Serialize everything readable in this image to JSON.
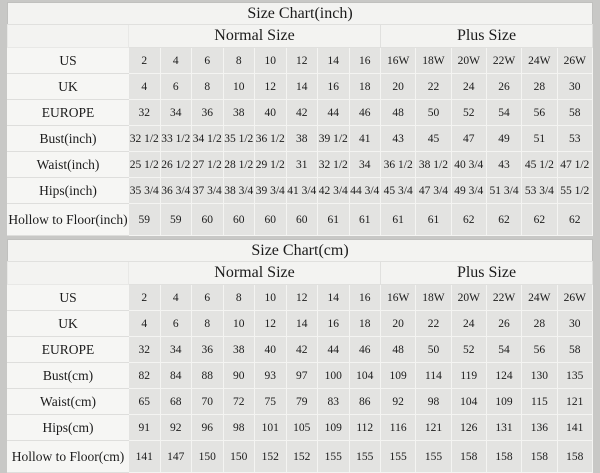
{
  "colors": {
    "page_bg": "#c8c8c6",
    "table_bg": "#f3f3f1",
    "data_cell_bg": "#e3e3e1",
    "label_cell_bg": "#f6f6f4",
    "grid_line": "#f4f4f2",
    "text": "#1b1b1b"
  },
  "chart_data": [
    {
      "type": "table",
      "title": "Size Chart(inch)",
      "column_groups": [
        "Normal Size",
        "Plus Size"
      ],
      "normal_columns": 8,
      "plus_columns": 6,
      "rows": [
        {
          "label": "US",
          "normal": [
            "2",
            "4",
            "6",
            "8",
            "10",
            "12",
            "14",
            "16"
          ],
          "plus": [
            "16W",
            "18W",
            "20W",
            "22W",
            "24W",
            "26W"
          ]
        },
        {
          "label": "UK",
          "normal": [
            "4",
            "6",
            "8",
            "10",
            "12",
            "14",
            "16",
            "18"
          ],
          "plus": [
            "20",
            "22",
            "24",
            "26",
            "28",
            "30"
          ]
        },
        {
          "label": "EUROPE",
          "normal": [
            "32",
            "34",
            "36",
            "38",
            "40",
            "42",
            "44",
            "46"
          ],
          "plus": [
            "48",
            "50",
            "52",
            "54",
            "56",
            "58"
          ]
        },
        {
          "label": "Bust(inch)",
          "normal": [
            "32 1/2",
            "33 1/2",
            "34 1/2",
            "35 1/2",
            "36 1/2",
            "38",
            "39 1/2",
            "41"
          ],
          "plus": [
            "43",
            "45",
            "47",
            "49",
            "51",
            "53"
          ]
        },
        {
          "label": "Waist(inch)",
          "normal": [
            "25 1/2",
            "26 1/2",
            "27 1/2",
            "28 1/2",
            "29 1/2",
            "31",
            "32 1/2",
            "34"
          ],
          "plus": [
            "36 1/2",
            "38 1/2",
            "40 3/4",
            "43",
            "45 1/2",
            "47 1/2"
          ]
        },
        {
          "label": "Hips(inch)",
          "normal": [
            "35 3/4",
            "36 3/4",
            "37 3/4",
            "38 3/4",
            "39 3/4",
            "41 3/4",
            "42 3/4",
            "44 3/4"
          ],
          "plus": [
            "45 3/4",
            "47 3/4",
            "49 3/4",
            "51 3/4",
            "53 3/4",
            "55 1/2"
          ]
        },
        {
          "label": "Hollow to Floor(inch)",
          "normal": [
            "59",
            "59",
            "60",
            "60",
            "60",
            "60",
            "61",
            "61"
          ],
          "plus": [
            "61",
            "61",
            "62",
            "62",
            "62",
            "62"
          ]
        }
      ]
    },
    {
      "type": "table",
      "title": "Size Chart(cm)",
      "column_groups": [
        "Normal Size",
        "Plus Size"
      ],
      "normal_columns": 8,
      "plus_columns": 6,
      "rows": [
        {
          "label": "US",
          "normal": [
            "2",
            "4",
            "6",
            "8",
            "10",
            "12",
            "14",
            "16"
          ],
          "plus": [
            "16W",
            "18W",
            "20W",
            "22W",
            "24W",
            "26W"
          ]
        },
        {
          "label": "UK",
          "normal": [
            "4",
            "6",
            "8",
            "10",
            "12",
            "14",
            "16",
            "18"
          ],
          "plus": [
            "20",
            "22",
            "24",
            "26",
            "28",
            "30"
          ]
        },
        {
          "label": "EUROPE",
          "normal": [
            "32",
            "34",
            "36",
            "38",
            "40",
            "42",
            "44",
            "46"
          ],
          "plus": [
            "48",
            "50",
            "52",
            "54",
            "56",
            "58"
          ]
        },
        {
          "label": "Bust(cm)",
          "normal": [
            "82",
            "84",
            "88",
            "90",
            "93",
            "97",
            "100",
            "104"
          ],
          "plus": [
            "109",
            "114",
            "119",
            "124",
            "130",
            "135"
          ]
        },
        {
          "label": "Waist(cm)",
          "normal": [
            "65",
            "68",
            "70",
            "72",
            "75",
            "79",
            "83",
            "86"
          ],
          "plus": [
            "92",
            "98",
            "104",
            "109",
            "115",
            "121"
          ]
        },
        {
          "label": "Hips(cm)",
          "normal": [
            "91",
            "92",
            "96",
            "98",
            "101",
            "105",
            "109",
            "112"
          ],
          "plus": [
            "116",
            "121",
            "126",
            "131",
            "136",
            "141"
          ]
        },
        {
          "label": "Hollow to Floor(cm)",
          "normal": [
            "141",
            "147",
            "150",
            "150",
            "152",
            "152",
            "155",
            "155"
          ],
          "plus": [
            "155",
            "155",
            "158",
            "158",
            "158",
            "158"
          ]
        }
      ]
    }
  ]
}
